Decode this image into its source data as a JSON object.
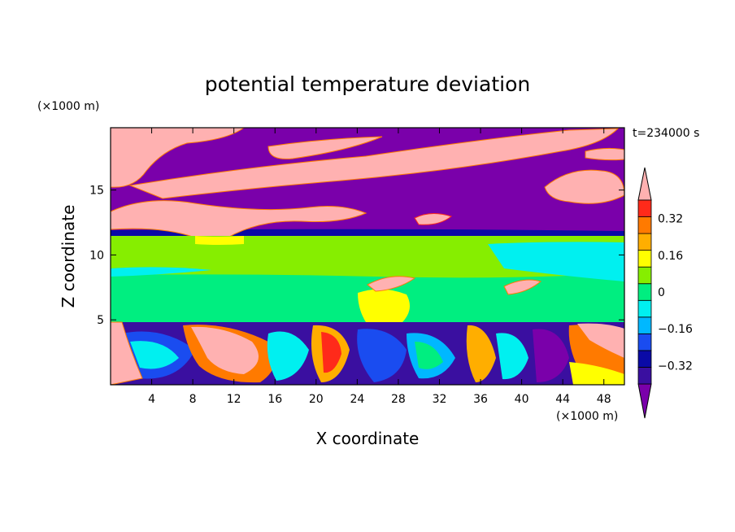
{
  "chart_data": {
    "type": "heatmap",
    "title": "potential temperature deviation",
    "xlabel": "X coordinate",
    "ylabel": "Z coordinate",
    "x_unit": "(×1000 m)",
    "y_unit": "(×1000 m)",
    "time_label": "t=234000 s",
    "xlim": [
      0,
      50
    ],
    "ylim": [
      0,
      19.8
    ],
    "x_ticks": [
      4,
      8,
      12,
      16,
      20,
      24,
      28,
      32,
      36,
      40,
      44,
      48
    ],
    "x_tick_labels": [
      "4",
      "8",
      "12",
      "16",
      "20",
      "24",
      "28",
      "32",
      "36",
      "40",
      "44",
      "48"
    ],
    "y_ticks": [
      5,
      10,
      15
    ],
    "y_tick_labels": [
      "5",
      "10",
      "15"
    ],
    "colorbar": {
      "boundaries": [
        -0.48,
        -0.4,
        -0.32,
        -0.24,
        -0.16,
        -0.08,
        0,
        0.08,
        0.16,
        0.24,
        0.32,
        0.4,
        0.48
      ],
      "colors": [
        "#7a00aa",
        "#3a0fa0",
        "#0a0aa6",
        "#1a4cf0",
        "#00b8ff",
        "#00f0f0",
        "#00ee80",
        "#86ee00",
        "#ffff00",
        "#ffae00",
        "#ff7a00",
        "#ff2a1a",
        "#ffb1b1"
      ],
      "tick_values": [
        -0.32,
        -0.16,
        0,
        0.16,
        0.32
      ],
      "tick_labels": [
        "−0.32",
        "−0.16",
        "0",
        "0.16",
        "0.32"
      ],
      "extend": "both"
    }
  }
}
